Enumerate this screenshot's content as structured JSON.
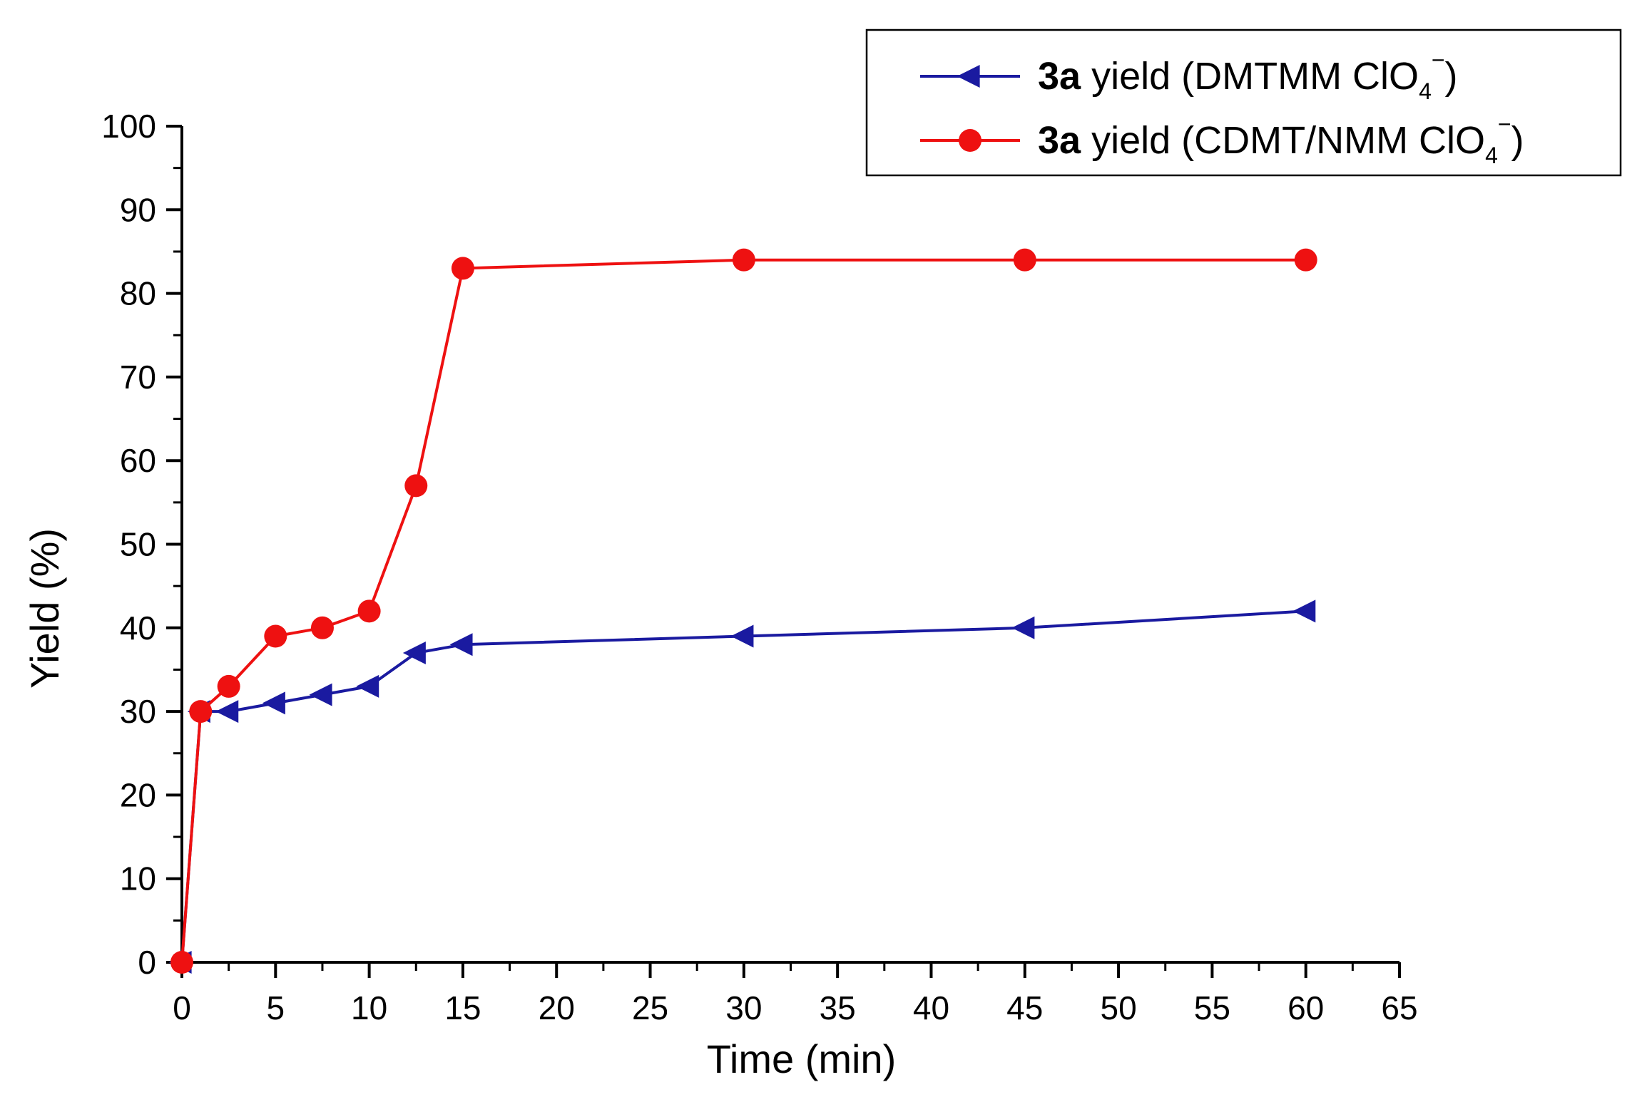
{
  "chart_data": {
    "type": "line",
    "title": "",
    "xlabel": "Time (min)",
    "ylabel": "Yield (%)",
    "xlim": [
      0,
      65
    ],
    "ylim": [
      0,
      100
    ],
    "xticks": [
      0,
      5,
      10,
      15,
      20,
      25,
      30,
      35,
      40,
      45,
      50,
      55,
      60,
      65
    ],
    "yticks": [
      0,
      10,
      20,
      30,
      40,
      50,
      60,
      70,
      80,
      90,
      100
    ],
    "grid": false,
    "legend_position": "top-right",
    "series": [
      {
        "name_bold": "3a",
        "name_rest": " yield (DMTMM ClO",
        "name_sub": "4",
        "name_sup": "−",
        "name_close": ")",
        "marker": "triangle-left",
        "color": "#1a1aa0",
        "x": [
          0,
          1,
          2.5,
          5,
          7.5,
          10,
          12.5,
          15,
          30,
          45,
          60
        ],
        "y": [
          0,
          30,
          30,
          31,
          32,
          33,
          37,
          38,
          39,
          40,
          42
        ]
      },
      {
        "name_bold": "3a",
        "name_rest": " yield (CDMT/NMM ClO",
        "name_sub": "4",
        "name_sup": "−",
        "name_close": ")",
        "marker": "circle",
        "color": "#ee1111",
        "x": [
          0,
          1,
          2.5,
          5,
          7.5,
          10,
          12.5,
          15,
          30,
          45,
          60
        ],
        "y": [
          0,
          30,
          33,
          39,
          40,
          42,
          57,
          83,
          84,
          84,
          84
        ]
      }
    ]
  }
}
